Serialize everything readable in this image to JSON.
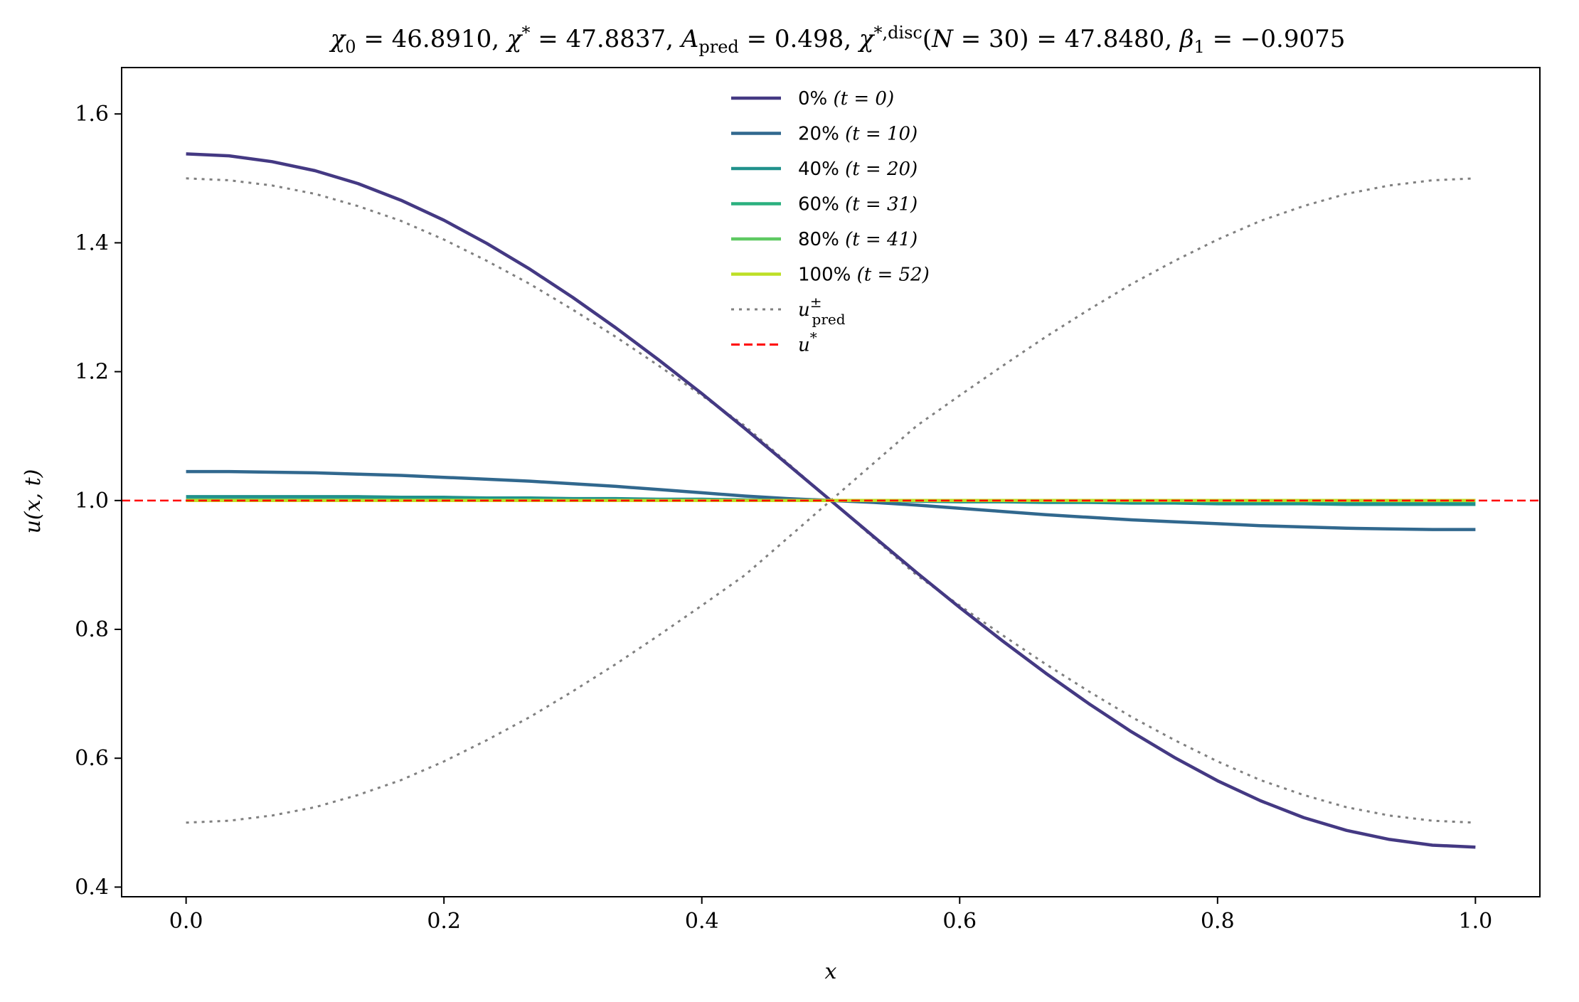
{
  "chart_data": {
    "type": "line",
    "title": "χ₀ = 46.8910,  χ* = 47.8837,  A_pred = 0.498,  χ*,disc(N = 30) = 47.8480,  β₁ = −0.9075",
    "xlabel": "x",
    "ylabel": "u(x, t)",
    "xlim": [
      -0.05,
      1.05
    ],
    "ylim": [
      0.385,
      1.672
    ],
    "xticks": [
      0.0,
      0.2,
      0.4,
      0.6,
      0.8,
      1.0
    ],
    "xtick_labels": [
      "0.0",
      "0.2",
      "0.4",
      "0.6",
      "0.8",
      "1.0"
    ],
    "yticks": [
      0.4,
      0.6,
      0.8,
      1.0,
      1.2,
      1.4,
      1.6
    ],
    "ytick_labels": [
      "0.4",
      "0.6",
      "0.8",
      "1.0",
      "1.2",
      "1.4",
      "1.6"
    ],
    "grid": false,
    "legend_position": "top-center",
    "x": [
      0.0,
      0.0333,
      0.0667,
      0.1,
      0.1333,
      0.1667,
      0.2,
      0.2333,
      0.2667,
      0.3,
      0.3333,
      0.3667,
      0.4,
      0.4333,
      0.4667,
      0.5,
      0.5333,
      0.5667,
      0.6,
      0.6333,
      0.6667,
      0.7,
      0.7333,
      0.7667,
      0.8,
      0.8333,
      0.8667,
      0.9,
      0.9333,
      0.9667,
      1.0
    ],
    "series": [
      {
        "name": "0% (t = 0)",
        "color": "#443983",
        "style": "solid",
        "values": [
          1.538,
          1.535,
          1.526,
          1.512,
          1.492,
          1.466,
          1.435,
          1.399,
          1.359,
          1.315,
          1.268,
          1.218,
          1.166,
          1.112,
          1.056,
          1.0,
          0.944,
          0.888,
          0.834,
          0.782,
          0.732,
          0.685,
          0.641,
          0.601,
          0.565,
          0.534,
          0.508,
          0.488,
          0.474,
          0.465,
          0.462
        ]
      },
      {
        "name": "20% (t = 10)",
        "color": "#31688e",
        "style": "solid",
        "values": [
          1.045,
          1.045,
          1.044,
          1.043,
          1.041,
          1.039,
          1.036,
          1.033,
          1.03,
          1.026,
          1.022,
          1.017,
          1.012,
          1.007,
          1.003,
          1.0,
          0.997,
          0.993,
          0.988,
          0.983,
          0.978,
          0.974,
          0.97,
          0.967,
          0.964,
          0.961,
          0.959,
          0.957,
          0.956,
          0.955,
          0.955
        ]
      },
      {
        "name": "40% (t = 20)",
        "color": "#21918c",
        "style": "solid",
        "values": [
          1.006,
          1.006,
          1.006,
          1.006,
          1.006,
          1.005,
          1.005,
          1.004,
          1.004,
          1.003,
          1.003,
          1.002,
          1.002,
          1.001,
          1.0,
          1.0,
          1.0,
          0.999,
          0.998,
          0.998,
          0.997,
          0.997,
          0.996,
          0.996,
          0.995,
          0.995,
          0.995,
          0.994,
          0.994,
          0.994,
          0.994
        ]
      },
      {
        "name": "60% (t = 31)",
        "color": "#2ab07f",
        "style": "solid",
        "values": [
          1.001,
          1.001,
          1.001,
          1.001,
          1.001,
          1.001,
          1.001,
          1.001,
          1.001,
          1.0,
          1.0,
          1.0,
          1.0,
          1.0,
          1.0,
          1.0,
          1.0,
          1.0,
          1.0,
          1.0,
          1.0,
          0.999,
          0.999,
          0.999,
          0.999,
          0.999,
          0.999,
          0.999,
          0.999,
          0.999,
          0.999
        ]
      },
      {
        "name": "80% (t = 41)",
        "color": "#5ec962",
        "style": "solid",
        "values": [
          1.0,
          1.0,
          1.0,
          1.0,
          1.0,
          1.0,
          1.0,
          1.0,
          1.0,
          1.0,
          1.0,
          1.0,
          1.0,
          1.0,
          1.0,
          1.0,
          1.0,
          1.0,
          1.0,
          1.0,
          1.0,
          1.0,
          1.0,
          1.0,
          1.0,
          1.0,
          1.0,
          1.0,
          1.0,
          1.0,
          1.0
        ]
      },
      {
        "name": "100% (t = 52)",
        "color": "#bddf26",
        "style": "solid",
        "values": [
          1.0,
          1.0,
          1.0,
          1.0,
          1.0,
          1.0,
          1.0,
          1.0,
          1.0,
          1.0,
          1.0,
          1.0,
          1.0,
          1.0,
          1.0,
          1.0,
          1.0,
          1.0,
          1.0,
          1.0,
          1.0,
          1.0,
          1.0,
          1.0,
          1.0,
          1.0,
          1.0,
          1.0,
          1.0,
          1.0,
          1.0
        ]
      },
      {
        "name": "u±pred (+)",
        "color": "#808080",
        "style": "dotted",
        "values": [
          1.5,
          1.497,
          1.489,
          1.476,
          1.457,
          1.434,
          1.405,
          1.372,
          1.336,
          1.296,
          1.254,
          1.209,
          1.163,
          1.116,
          1.058,
          1.0,
          0.942,
          0.884,
          0.837,
          0.791,
          0.746,
          0.704,
          0.664,
          0.628,
          0.595,
          0.566,
          0.543,
          0.524,
          0.511,
          0.503,
          0.5
        ]
      },
      {
        "name": "u±pred (−)",
        "color": "#808080",
        "style": "dotted",
        "values": [
          0.5,
          0.503,
          0.511,
          0.524,
          0.543,
          0.566,
          0.595,
          0.628,
          0.664,
          0.704,
          0.746,
          0.791,
          0.837,
          0.884,
          0.942,
          1.0,
          1.058,
          1.116,
          1.163,
          1.209,
          1.254,
          1.296,
          1.336,
          1.372,
          1.405,
          1.434,
          1.457,
          1.476,
          1.489,
          1.497,
          1.5
        ]
      },
      {
        "name": "u*",
        "color": "#ff0000",
        "style": "dashed",
        "hline": 1.0
      }
    ],
    "legend": [
      {
        "label_pct": "0%",
        "label_t": "(t = 0)",
        "color": "#443983",
        "style": "solid"
      },
      {
        "label_pct": "20%",
        "label_t": "(t = 10)",
        "color": "#31688e",
        "style": "solid"
      },
      {
        "label_pct": "40%",
        "label_t": "(t = 20)",
        "color": "#21918c",
        "style": "solid"
      },
      {
        "label_pct": "60%",
        "label_t": "(t = 31)",
        "color": "#2ab07f",
        "style": "solid"
      },
      {
        "label_pct": "80%",
        "label_t": "(t = 41)",
        "color": "#5ec962",
        "style": "solid"
      },
      {
        "label_pct": "100%",
        "label_t": "(t = 52)",
        "color": "#bddf26",
        "style": "solid"
      },
      {
        "label_pct": "",
        "label_t": "u±pred",
        "color": "#808080",
        "style": "dotted"
      },
      {
        "label_pct": "",
        "label_t": "u*",
        "color": "#ff0000",
        "style": "dashed"
      }
    ]
  }
}
